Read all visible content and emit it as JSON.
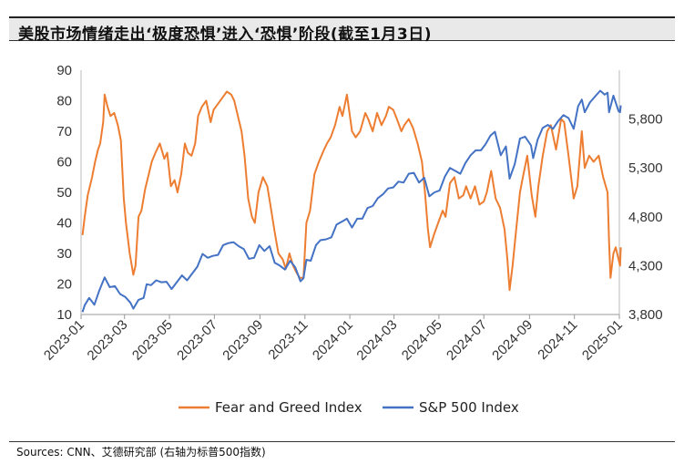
{
  "header": {
    "title": "美股市场情绪走出‘极度恐惧’进入‘恐惧’阶段(截至1月3日)"
  },
  "footer": {
    "source": "Sources: CNN、艾德研究部 (右轴为标普500指数)"
  },
  "colors": {
    "fear_greed": "#ED7D31",
    "sp500": "#4472C4"
  },
  "chart_data": {
    "type": "line",
    "x_tick_labels": [
      "2023-01",
      "2023-03",
      "2023-05",
      "2023-07",
      "2023-09",
      "2023-11",
      "2024-01",
      "2024-03",
      "2024-05",
      "2024-07",
      "2024-09",
      "2024-11",
      "2025-01"
    ],
    "left_axis": {
      "ylim": [
        10,
        90
      ],
      "ticks": [
        "10",
        "20",
        "30",
        "40",
        "50",
        "60",
        "70",
        "80",
        "90"
      ]
    },
    "right_axis": {
      "ylim": [
        3800,
        6300
      ],
      "ticks": [
        "3,800",
        "4,300",
        "4,800",
        "5,300",
        "5,800"
      ]
    },
    "legend": [
      "Fear and Greed Index",
      "S&P 500 Index"
    ],
    "legend_position": "bottom",
    "grid": false,
    "series": [
      {
        "name": "Fear and Greed Index",
        "axis": "left",
        "color": "#ED7D31",
        "points": [
          [
            "2023-01-03",
            36
          ],
          [
            "2023-01-06",
            42
          ],
          [
            "2023-01-10",
            49
          ],
          [
            "2023-01-16",
            55
          ],
          [
            "2023-01-20",
            60
          ],
          [
            "2023-01-24",
            64
          ],
          [
            "2023-01-27",
            66
          ],
          [
            "2023-01-31",
            73
          ],
          [
            "2023-02-02",
            82
          ],
          [
            "2023-02-06",
            78
          ],
          [
            "2023-02-10",
            75
          ],
          [
            "2023-02-15",
            76
          ],
          [
            "2023-02-20",
            72
          ],
          [
            "2023-02-24",
            67
          ],
          [
            "2023-02-28",
            48
          ],
          [
            "2023-03-03",
            40
          ],
          [
            "2023-03-08",
            30
          ],
          [
            "2023-03-13",
            23
          ],
          [
            "2023-03-16",
            26
          ],
          [
            "2023-03-20",
            42
          ],
          [
            "2023-03-24",
            44
          ],
          [
            "2023-03-29",
            51
          ],
          [
            "2023-04-03",
            56
          ],
          [
            "2023-04-07",
            60
          ],
          [
            "2023-04-12",
            63
          ],
          [
            "2023-04-18",
            66
          ],
          [
            "2023-04-24",
            61
          ],
          [
            "2023-04-28",
            63
          ],
          [
            "2023-05-03",
            52
          ],
          [
            "2023-05-08",
            54
          ],
          [
            "2023-05-12",
            50
          ],
          [
            "2023-05-17",
            56
          ],
          [
            "2023-05-22",
            66
          ],
          [
            "2023-05-26",
            63
          ],
          [
            "2023-05-31",
            62
          ],
          [
            "2023-06-05",
            66
          ],
          [
            "2023-06-09",
            75
          ],
          [
            "2023-06-14",
            78
          ],
          [
            "2023-06-20",
            80
          ],
          [
            "2023-06-26",
            73
          ],
          [
            "2023-06-30",
            77
          ],
          [
            "2023-07-06",
            79
          ],
          [
            "2023-07-12",
            81
          ],
          [
            "2023-07-18",
            83
          ],
          [
            "2023-07-24",
            82
          ],
          [
            "2023-07-28",
            80
          ],
          [
            "2023-08-02",
            75
          ],
          [
            "2023-08-07",
            70
          ],
          [
            "2023-08-11",
            62
          ],
          [
            "2023-08-16",
            48
          ],
          [
            "2023-08-21",
            42
          ],
          [
            "2023-08-25",
            40
          ],
          [
            "2023-08-30",
            50
          ],
          [
            "2023-09-05",
            55
          ],
          [
            "2023-09-11",
            52
          ],
          [
            "2023-09-15",
            46
          ],
          [
            "2023-09-21",
            37
          ],
          [
            "2023-09-26",
            30
          ],
          [
            "2023-10-02",
            28
          ],
          [
            "2023-10-06",
            25
          ],
          [
            "2023-10-11",
            30
          ],
          [
            "2023-10-16",
            26
          ],
          [
            "2023-10-20",
            24
          ],
          [
            "2023-10-25",
            22
          ],
          [
            "2023-10-30",
            22
          ],
          [
            "2023-11-03",
            40
          ],
          [
            "2023-11-08",
            44
          ],
          [
            "2023-11-14",
            56
          ],
          [
            "2023-11-20",
            60
          ],
          [
            "2023-11-27",
            64
          ],
          [
            "2023-12-01",
            66
          ],
          [
            "2023-12-06",
            68
          ],
          [
            "2023-12-12",
            72
          ],
          [
            "2023-12-18",
            78
          ],
          [
            "2023-12-22",
            75
          ],
          [
            "2023-12-28",
            82
          ],
          [
            "2024-01-04",
            70
          ],
          [
            "2024-01-09",
            68
          ],
          [
            "2024-01-15",
            70
          ],
          [
            "2024-01-22",
            76
          ],
          [
            "2024-01-26",
            74
          ],
          [
            "2024-02-01",
            70
          ],
          [
            "2024-02-07",
            76
          ],
          [
            "2024-02-13",
            72
          ],
          [
            "2024-02-19",
            75
          ],
          [
            "2024-02-23",
            78
          ],
          [
            "2024-02-29",
            77
          ],
          [
            "2024-03-05",
            74
          ],
          [
            "2024-03-11",
            70
          ],
          [
            "2024-03-15",
            72
          ],
          [
            "2024-03-21",
            74
          ],
          [
            "2024-03-27",
            71
          ],
          [
            "2024-04-02",
            66
          ],
          [
            "2024-04-08",
            60
          ],
          [
            "2024-04-12",
            50
          ],
          [
            "2024-04-16",
            38
          ],
          [
            "2024-04-19",
            32
          ],
          [
            "2024-04-24",
            36
          ],
          [
            "2024-04-30",
            40
          ],
          [
            "2024-05-06",
            44
          ],
          [
            "2024-05-10",
            42
          ],
          [
            "2024-05-16",
            53
          ],
          [
            "2024-05-22",
            55
          ],
          [
            "2024-05-28",
            48
          ],
          [
            "2024-06-03",
            49
          ],
          [
            "2024-06-07",
            52
          ],
          [
            "2024-06-13",
            48
          ],
          [
            "2024-06-19",
            52
          ],
          [
            "2024-06-25",
            46
          ],
          [
            "2024-07-01",
            47
          ],
          [
            "2024-07-05",
            50
          ],
          [
            "2024-07-11",
            57
          ],
          [
            "2024-07-17",
            48
          ],
          [
            "2024-07-23",
            45
          ],
          [
            "2024-07-29",
            38
          ],
          [
            "2024-08-02",
            28
          ],
          [
            "2024-08-05",
            18
          ],
          [
            "2024-08-09",
            26
          ],
          [
            "2024-08-14",
            38
          ],
          [
            "2024-08-19",
            50
          ],
          [
            "2024-08-23",
            55
          ],
          [
            "2024-08-29",
            62
          ],
          [
            "2024-09-04",
            49
          ],
          [
            "2024-09-09",
            42
          ],
          [
            "2024-09-13",
            52
          ],
          [
            "2024-09-19",
            62
          ],
          [
            "2024-09-25",
            70
          ],
          [
            "2024-09-30",
            72
          ],
          [
            "2024-10-07",
            64
          ],
          [
            "2024-10-14",
            74
          ],
          [
            "2024-10-18",
            73
          ],
          [
            "2024-10-24",
            62
          ],
          [
            "2024-10-31",
            48
          ],
          [
            "2024-11-05",
            52
          ],
          [
            "2024-11-11",
            70
          ],
          [
            "2024-11-15",
            58
          ],
          [
            "2024-11-21",
            62
          ],
          [
            "2024-11-27",
            60
          ],
          [
            "2024-12-04",
            62
          ],
          [
            "2024-12-10",
            55
          ],
          [
            "2024-12-16",
            50
          ],
          [
            "2024-12-18",
            34
          ],
          [
            "2024-12-20",
            22
          ],
          [
            "2024-12-24",
            30
          ],
          [
            "2024-12-27",
            32
          ],
          [
            "2025-01-02",
            26
          ],
          [
            "2025-01-03",
            32
          ]
        ]
      },
      {
        "name": "S&P 500 Index",
        "axis": "right",
        "color": "#4472C4",
        "points": [
          [
            "2023-01-03",
            3825
          ],
          [
            "2023-01-06",
            3895
          ],
          [
            "2023-01-12",
            3970
          ],
          [
            "2023-01-19",
            3900
          ],
          [
            "2023-01-26",
            4050
          ],
          [
            "2023-02-02",
            4180
          ],
          [
            "2023-02-09",
            4080
          ],
          [
            "2023-02-16",
            4090
          ],
          [
            "2023-02-23",
            4010
          ],
          [
            "2023-03-02",
            3980
          ],
          [
            "2023-03-09",
            3920
          ],
          [
            "2023-03-13",
            3860
          ],
          [
            "2023-03-20",
            3950
          ],
          [
            "2023-03-27",
            3970
          ],
          [
            "2023-03-31",
            4110
          ],
          [
            "2023-04-06",
            4100
          ],
          [
            "2023-04-13",
            4150
          ],
          [
            "2023-04-20",
            4130
          ],
          [
            "2023-04-27",
            4135
          ],
          [
            "2023-05-04",
            4060
          ],
          [
            "2023-05-11",
            4130
          ],
          [
            "2023-05-18",
            4200
          ],
          [
            "2023-05-25",
            4150
          ],
          [
            "2023-06-01",
            4220
          ],
          [
            "2023-06-08",
            4290
          ],
          [
            "2023-06-15",
            4420
          ],
          [
            "2023-06-22",
            4380
          ],
          [
            "2023-06-29",
            4400
          ],
          [
            "2023-07-06",
            4410
          ],
          [
            "2023-07-13",
            4510
          ],
          [
            "2023-07-20",
            4530
          ],
          [
            "2023-07-27",
            4540
          ],
          [
            "2023-08-03",
            4500
          ],
          [
            "2023-08-10",
            4470
          ],
          [
            "2023-08-17",
            4370
          ],
          [
            "2023-08-24",
            4380
          ],
          [
            "2023-08-31",
            4510
          ],
          [
            "2023-09-07",
            4450
          ],
          [
            "2023-09-14",
            4500
          ],
          [
            "2023-09-21",
            4330
          ],
          [
            "2023-09-28",
            4300
          ],
          [
            "2023-10-05",
            4260
          ],
          [
            "2023-10-12",
            4350
          ],
          [
            "2023-10-19",
            4280
          ],
          [
            "2023-10-26",
            4140
          ],
          [
            "2023-10-30",
            4170
          ],
          [
            "2023-11-03",
            4360
          ],
          [
            "2023-11-09",
            4350
          ],
          [
            "2023-11-16",
            4510
          ],
          [
            "2023-11-22",
            4560
          ],
          [
            "2023-11-30",
            4570
          ],
          [
            "2023-12-07",
            4590
          ],
          [
            "2023-12-14",
            4720
          ],
          [
            "2023-12-21",
            4750
          ],
          [
            "2023-12-28",
            4780
          ],
          [
            "2024-01-04",
            4690
          ],
          [
            "2024-01-11",
            4780
          ],
          [
            "2024-01-18",
            4780
          ],
          [
            "2024-01-25",
            4890
          ],
          [
            "2024-02-01",
            4910
          ],
          [
            "2024-02-08",
            4990
          ],
          [
            "2024-02-15",
            5030
          ],
          [
            "2024-02-22",
            5090
          ],
          [
            "2024-02-29",
            5100
          ],
          [
            "2024-03-07",
            5160
          ],
          [
            "2024-03-14",
            5150
          ],
          [
            "2024-03-21",
            5240
          ],
          [
            "2024-03-28",
            5250
          ],
          [
            "2024-04-04",
            5150
          ],
          [
            "2024-04-11",
            5200
          ],
          [
            "2024-04-18",
            5010
          ],
          [
            "2024-04-25",
            5050
          ],
          [
            "2024-05-02",
            5070
          ],
          [
            "2024-05-09",
            5210
          ],
          [
            "2024-05-16",
            5300
          ],
          [
            "2024-05-23",
            5270
          ],
          [
            "2024-05-30",
            5240
          ],
          [
            "2024-06-06",
            5350
          ],
          [
            "2024-06-13",
            5430
          ],
          [
            "2024-06-20",
            5480
          ],
          [
            "2024-06-27",
            5480
          ],
          [
            "2024-07-03",
            5540
          ],
          [
            "2024-07-10",
            5630
          ],
          [
            "2024-07-16",
            5670
          ],
          [
            "2024-07-24",
            5430
          ],
          [
            "2024-07-31",
            5520
          ],
          [
            "2024-08-05",
            5190
          ],
          [
            "2024-08-12",
            5340
          ],
          [
            "2024-08-19",
            5600
          ],
          [
            "2024-08-26",
            5620
          ],
          [
            "2024-09-03",
            5530
          ],
          [
            "2024-09-06",
            5400
          ],
          [
            "2024-09-12",
            5590
          ],
          [
            "2024-09-19",
            5710
          ],
          [
            "2024-09-26",
            5740
          ],
          [
            "2024-10-03",
            5700
          ],
          [
            "2024-10-10",
            5780
          ],
          [
            "2024-10-17",
            5840
          ],
          [
            "2024-10-24",
            5810
          ],
          [
            "2024-10-31",
            5700
          ],
          [
            "2024-11-06",
            5930
          ],
          [
            "2024-11-11",
            6000
          ],
          [
            "2024-11-15",
            5870
          ],
          [
            "2024-11-22",
            5970
          ],
          [
            "2024-11-29",
            6030
          ],
          [
            "2024-12-06",
            6090
          ],
          [
            "2024-12-12",
            6050
          ],
          [
            "2024-12-16",
            6070
          ],
          [
            "2024-12-18",
            5870
          ],
          [
            "2024-12-24",
            6040
          ],
          [
            "2024-12-27",
            5970
          ],
          [
            "2024-12-31",
            5880
          ],
          [
            "2025-01-02",
            5870
          ],
          [
            "2025-01-03",
            5940
          ]
        ]
      }
    ]
  }
}
